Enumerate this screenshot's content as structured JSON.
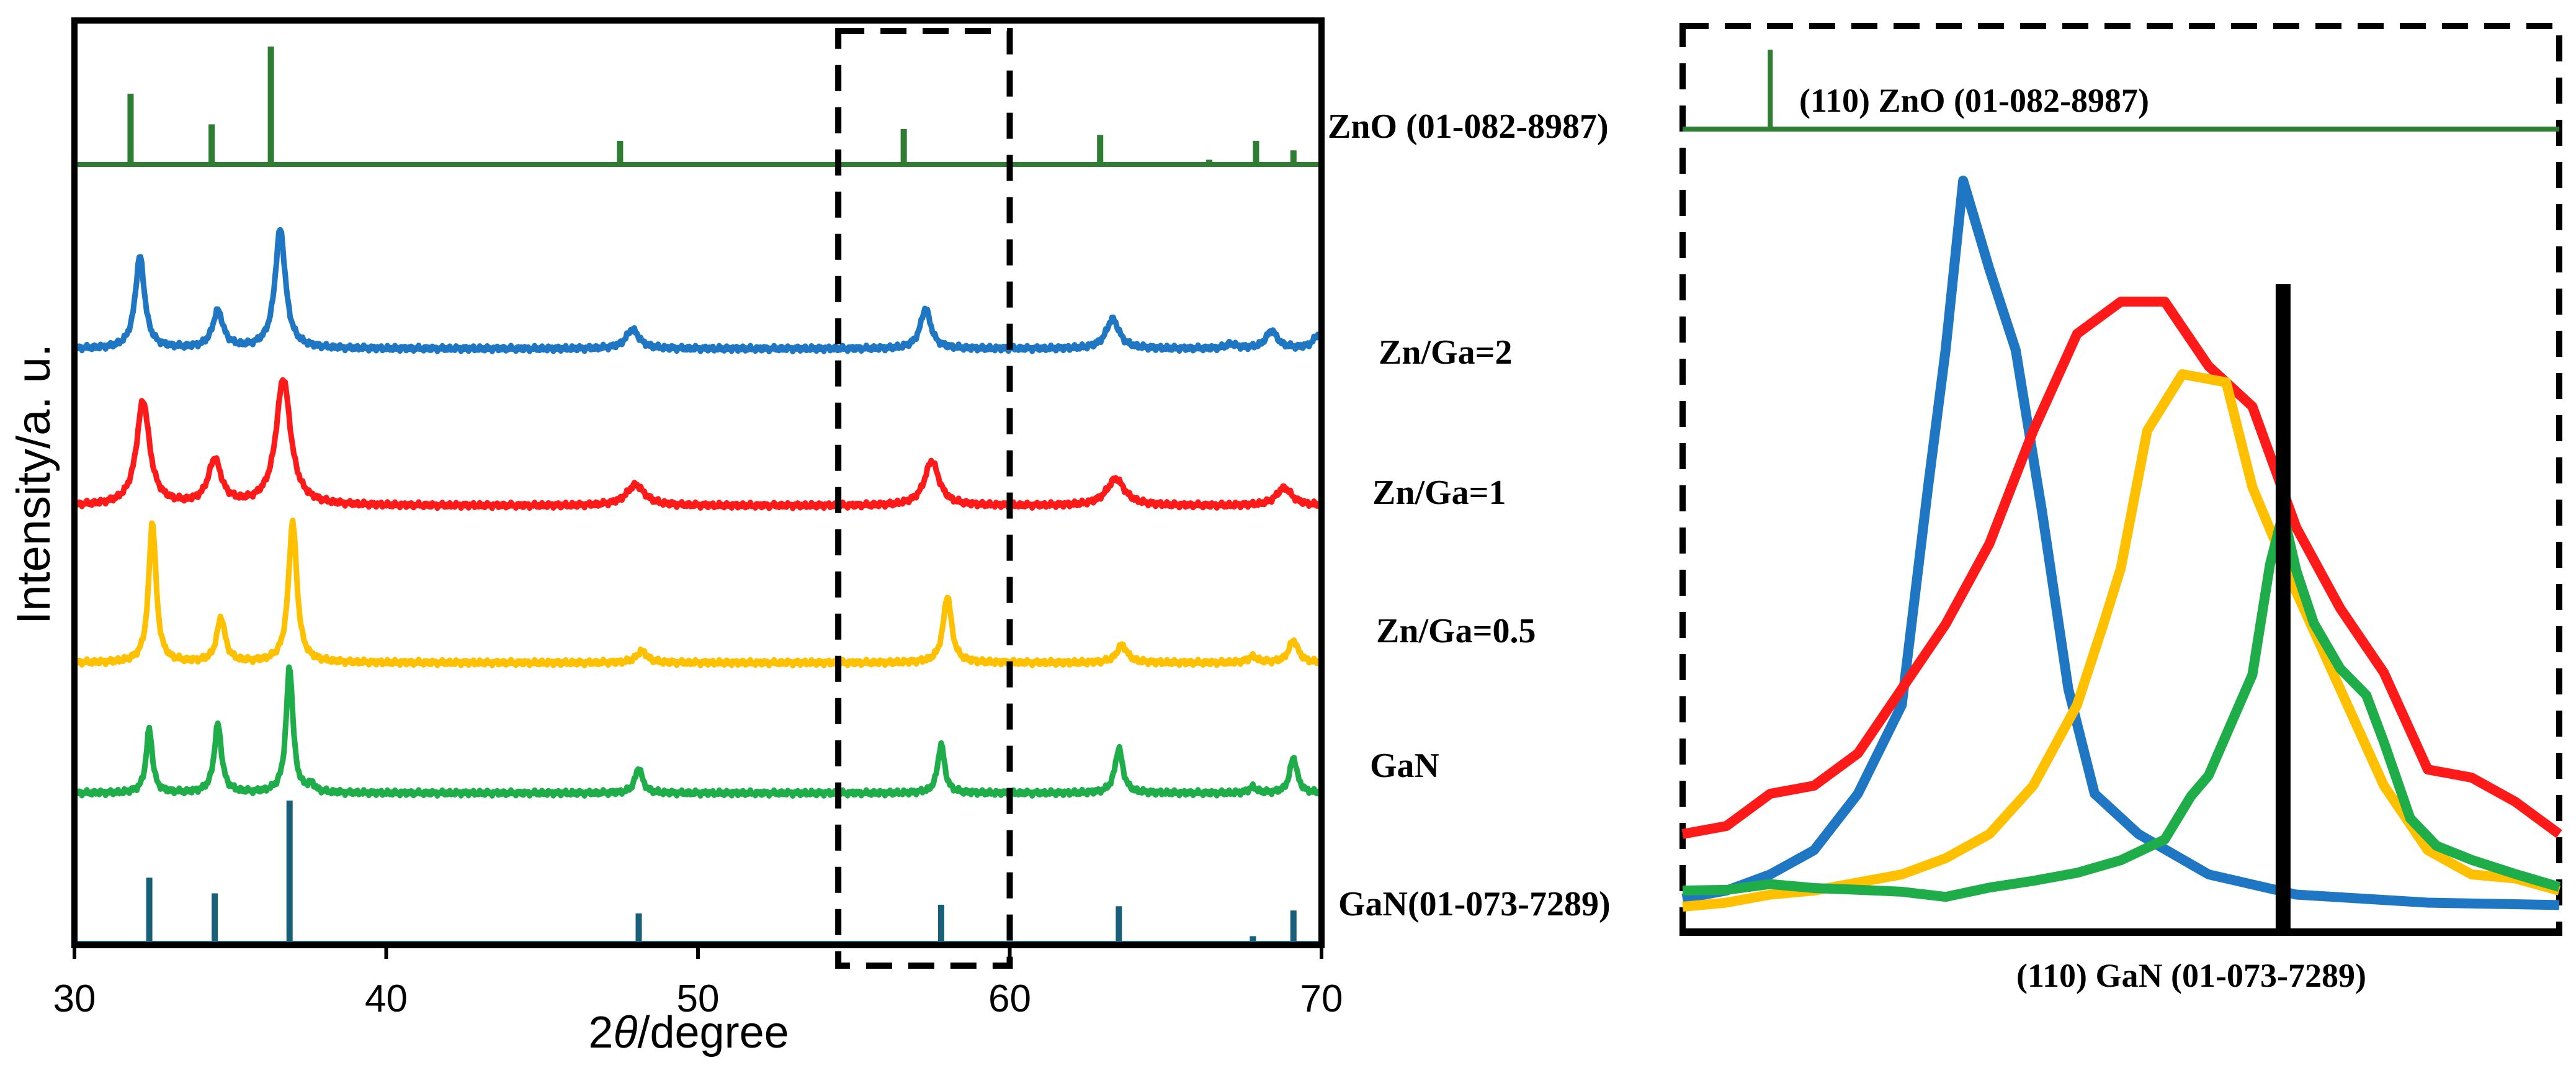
{
  "chart_data": [
    {
      "type": "line",
      "panel": "left",
      "title": "",
      "xlabel": "2θ/degree",
      "ylabel": "Intensity/a. u.",
      "xlim": [
        30,
        70
      ],
      "xticks": [
        30,
        40,
        50,
        60,
        70
      ],
      "zoom_box_x": [
        54.5,
        60
      ],
      "series": [
        {
          "name": "Zn/Ga=2",
          "color": "#1f77c4",
          "peaks": [
            {
              "x": 32.1,
              "h": 0.62,
              "w": 0.18
            },
            {
              "x": 34.6,
              "h": 0.25,
              "w": 0.2
            },
            {
              "x": 36.6,
              "h": 0.8,
              "w": 0.2
            },
            {
              "x": 47.9,
              "h": 0.13,
              "w": 0.25
            },
            {
              "x": 57.3,
              "h": 0.27,
              "w": 0.2
            },
            {
              "x": 63.3,
              "h": 0.2,
              "w": 0.25
            },
            {
              "x": 67.1,
              "h": 0.03,
              "w": 0.2
            },
            {
              "x": 68.4,
              "h": 0.12,
              "w": 0.22
            },
            {
              "x": 69.9,
              "h": 0.09,
              "w": 0.2
            }
          ]
        },
        {
          "name": "Zn/Ga=1",
          "color": "#ff1a1a",
          "peaks": [
            {
              "x": 32.2,
              "h": 0.7,
              "w": 0.25
            },
            {
              "x": 34.5,
              "h": 0.3,
              "w": 0.25
            },
            {
              "x": 36.7,
              "h": 0.85,
              "w": 0.28
            },
            {
              "x": 48.0,
              "h": 0.14,
              "w": 0.35
            },
            {
              "x": 57.5,
              "h": 0.3,
              "w": 0.28
            },
            {
              "x": 63.4,
              "h": 0.18,
              "w": 0.35
            },
            {
              "x": 68.8,
              "h": 0.12,
              "w": 0.3
            }
          ]
        },
        {
          "name": "Zn/Ga=0.5",
          "color": "#ffc000",
          "peaks": [
            {
              "x": 32.5,
              "h": 0.95,
              "w": 0.14
            },
            {
              "x": 34.7,
              "h": 0.3,
              "w": 0.16
            },
            {
              "x": 37.0,
              "h": 0.95,
              "w": 0.16
            },
            {
              "x": 48.2,
              "h": 0.08,
              "w": 0.2
            },
            {
              "x": 58.0,
              "h": 0.45,
              "w": 0.16
            },
            {
              "x": 63.6,
              "h": 0.12,
              "w": 0.2
            },
            {
              "x": 67.8,
              "h": 0.04,
              "w": 0.18
            },
            {
              "x": 69.1,
              "h": 0.15,
              "w": 0.18
            }
          ]
        },
        {
          "name": "GaN",
          "color": "#1fad4a",
          "peaks": [
            {
              "x": 32.4,
              "h": 0.43,
              "w": 0.12
            },
            {
              "x": 34.6,
              "h": 0.46,
              "w": 0.14
            },
            {
              "x": 36.9,
              "h": 0.85,
              "w": 0.13
            },
            {
              "x": 37.6,
              "h": 0.05,
              "w": 0.12
            },
            {
              "x": 48.1,
              "h": 0.17,
              "w": 0.14
            },
            {
              "x": 57.8,
              "h": 0.33,
              "w": 0.13
            },
            {
              "x": 63.5,
              "h": 0.3,
              "w": 0.15
            },
            {
              "x": 67.8,
              "h": 0.04,
              "w": 0.14
            },
            {
              "x": 69.1,
              "h": 0.24,
              "w": 0.14
            }
          ]
        }
      ],
      "references": [
        {
          "name": "ZnO (01-082-8987)",
          "color": "#2e7d32",
          "sticks": [
            [
              31.8,
              0.6
            ],
            [
              34.4,
              0.34
            ],
            [
              36.3,
              1.0
            ],
            [
              47.5,
              0.2
            ],
            [
              56.6,
              0.3
            ],
            [
              62.9,
              0.25
            ],
            [
              66.4,
              0.04
            ],
            [
              67.9,
              0.2
            ],
            [
              69.1,
              0.12
            ]
          ]
        },
        {
          "name": "GaN(01-073-7289)",
          "color": "#1a5f7a",
          "sticks": [
            [
              32.4,
              0.46
            ],
            [
              34.5,
              0.35
            ],
            [
              36.9,
              1.0
            ],
            [
              48.1,
              0.21
            ],
            [
              57.8,
              0.27
            ],
            [
              63.5,
              0.26
            ],
            [
              67.8,
              0.05
            ],
            [
              69.1,
              0.23
            ]
          ]
        }
      ]
    },
    {
      "type": "line",
      "panel": "right-zoom",
      "title": "",
      "xlim": [
        0,
        1
      ],
      "ylim": [
        0,
        1
      ],
      "xlabel": "(110) GaN (01-073-7289)",
      "top_reference_label": "(110) ZnO (01-082-8987)",
      "zno_stick_x": 0.1,
      "gan_stick_x": 0.685,
      "series": [
        {
          "name": "Zn/Ga=2",
          "color": "#1f77c4",
          "points": [
            [
              0,
              0.04
            ],
            [
              0.05,
              0.05
            ],
            [
              0.1,
              0.07
            ],
            [
              0.15,
              0.1
            ],
            [
              0.2,
              0.17
            ],
            [
              0.25,
              0.28
            ],
            [
              0.28,
              0.55
            ],
            [
              0.3,
              0.72
            ],
            [
              0.32,
              0.93
            ],
            [
              0.35,
              0.82
            ],
            [
              0.38,
              0.72
            ],
            [
              0.41,
              0.52
            ],
            [
              0.44,
              0.3
            ],
            [
              0.47,
              0.17
            ],
            [
              0.52,
              0.12
            ],
            [
              0.6,
              0.07
            ],
            [
              0.7,
              0.045
            ],
            [
              0.85,
              0.035
            ],
            [
              1,
              0.032
            ]
          ]
        },
        {
          "name": "Zn/Ga=1",
          "color": "#ff1a1a",
          "points": [
            [
              0,
              0.12
            ],
            [
              0.05,
              0.13
            ],
            [
              0.1,
              0.17
            ],
            [
              0.15,
              0.18
            ],
            [
              0.2,
              0.22
            ],
            [
              0.25,
              0.3
            ],
            [
              0.3,
              0.38
            ],
            [
              0.35,
              0.48
            ],
            [
              0.4,
              0.62
            ],
            [
              0.45,
              0.74
            ],
            [
              0.5,
              0.78
            ],
            [
              0.55,
              0.78
            ],
            [
              0.6,
              0.7
            ],
            [
              0.65,
              0.65
            ],
            [
              0.7,
              0.5
            ],
            [
              0.75,
              0.4
            ],
            [
              0.8,
              0.32
            ],
            [
              0.85,
              0.2
            ],
            [
              0.9,
              0.19
            ],
            [
              0.95,
              0.16
            ],
            [
              1,
              0.12
            ]
          ]
        },
        {
          "name": "Zn/Ga=0.5",
          "color": "#ffc000",
          "points": [
            [
              0,
              0.03
            ],
            [
              0.05,
              0.035
            ],
            [
              0.1,
              0.045
            ],
            [
              0.15,
              0.05
            ],
            [
              0.2,
              0.06
            ],
            [
              0.25,
              0.07
            ],
            [
              0.3,
              0.09
            ],
            [
              0.35,
              0.12
            ],
            [
              0.4,
              0.18
            ],
            [
              0.45,
              0.28
            ],
            [
              0.48,
              0.38
            ],
            [
              0.5,
              0.45
            ],
            [
              0.53,
              0.62
            ],
            [
              0.57,
              0.69
            ],
            [
              0.62,
              0.68
            ],
            [
              0.65,
              0.55
            ],
            [
              0.7,
              0.42
            ],
            [
              0.75,
              0.3
            ],
            [
              0.8,
              0.18
            ],
            [
              0.85,
              0.1
            ],
            [
              0.9,
              0.07
            ],
            [
              0.95,
              0.065
            ],
            [
              1,
              0.05
            ]
          ]
        },
        {
          "name": "GaN",
          "color": "#1fad4a",
          "points": [
            [
              0,
              0.05
            ],
            [
              0.05,
              0.045
            ],
            [
              0.1,
              0.05
            ],
            [
              0.15,
              0.048
            ],
            [
              0.2,
              0.052
            ],
            [
              0.25,
              0.055
            ],
            [
              0.3,
              0.05
            ],
            [
              0.35,
              0.058
            ],
            [
              0.4,
              0.06
            ],
            [
              0.45,
              0.065
            ],
            [
              0.5,
              0.08
            ],
            [
              0.55,
              0.11
            ],
            [
              0.58,
              0.17
            ],
            [
              0.6,
              0.2
            ],
            [
              0.62,
              0.25
            ],
            [
              0.65,
              0.32
            ],
            [
              0.67,
              0.45
            ],
            [
              0.685,
              0.51
            ],
            [
              0.7,
              0.44
            ],
            [
              0.72,
              0.38
            ],
            [
              0.75,
              0.33
            ],
            [
              0.78,
              0.3
            ],
            [
              0.8,
              0.24
            ],
            [
              0.83,
              0.14
            ],
            [
              0.86,
              0.1
            ],
            [
              0.9,
              0.08
            ],
            [
              0.95,
              0.065
            ],
            [
              1,
              0.055
            ]
          ]
        }
      ]
    }
  ]
}
